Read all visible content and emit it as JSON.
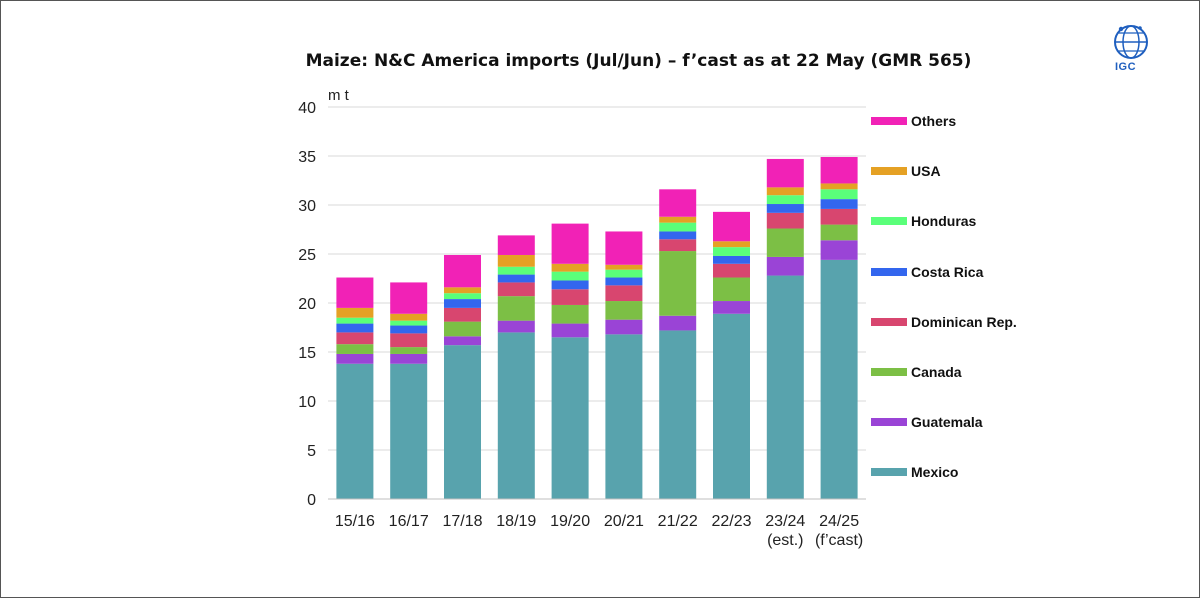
{
  "logo_text": "IGC",
  "chart_data": {
    "type": "bar",
    "stacked": true,
    "title": "Maize: N&C America imports (Jul/Jun) – f’cast as at 22 May (GMR 565)",
    "ylabel": "m t",
    "xlabel": "",
    "ylim": [
      0,
      40
    ],
    "yticks": [
      0,
      5,
      10,
      15,
      20,
      25,
      30,
      35,
      40
    ],
    "grid": true,
    "legend_position": "right",
    "categories": [
      [
        "15/16"
      ],
      [
        "16/17"
      ],
      [
        "17/18"
      ],
      [
        "18/19"
      ],
      [
        "19/20"
      ],
      [
        "20/21"
      ],
      [
        "21/22"
      ],
      [
        "22/23"
      ],
      [
        "23/24",
        "(est.)"
      ],
      [
        "24/25",
        "(f’cast)"
      ]
    ],
    "series": [
      {
        "name": "Mexico",
        "color": "#58a3ad",
        "values": [
          13.8,
          13.8,
          15.7,
          17.0,
          16.5,
          16.8,
          17.2,
          18.9,
          22.8,
          24.4
        ]
      },
      {
        "name": "Guatemala",
        "color": "#9a44d6",
        "values": [
          1.0,
          1.0,
          0.9,
          1.2,
          1.4,
          1.5,
          1.5,
          1.3,
          1.9,
          2.0
        ]
      },
      {
        "name": "Canada",
        "color": "#7cbf45",
        "values": [
          1.0,
          0.7,
          1.5,
          2.5,
          1.9,
          1.9,
          6.6,
          2.4,
          2.9,
          1.6
        ]
      },
      {
        "name": "Dominican Rep.",
        "color": "#d8466f",
        "values": [
          1.2,
          1.4,
          1.4,
          1.4,
          1.6,
          1.6,
          1.2,
          1.4,
          1.6,
          1.6
        ]
      },
      {
        "name": "Costa Rica",
        "color": "#3366ee",
        "values": [
          0.9,
          0.8,
          0.9,
          0.8,
          0.9,
          0.8,
          0.8,
          0.8,
          0.9,
          1.0
        ]
      },
      {
        "name": "Honduras",
        "color": "#5aff7a",
        "values": [
          0.6,
          0.5,
          0.6,
          0.8,
          0.9,
          0.8,
          0.9,
          0.9,
          0.9,
          1.0
        ]
      },
      {
        "name": "USA",
        "color": "#e5a124",
        "values": [
          1.0,
          0.7,
          0.6,
          1.2,
          0.8,
          0.5,
          0.6,
          0.6,
          0.8,
          0.6
        ]
      },
      {
        "name": "Others",
        "color": "#f122b6",
        "values": [
          3.1,
          3.2,
          3.3,
          2.0,
          4.1,
          3.4,
          2.8,
          3.0,
          2.9,
          2.7
        ]
      }
    ]
  }
}
